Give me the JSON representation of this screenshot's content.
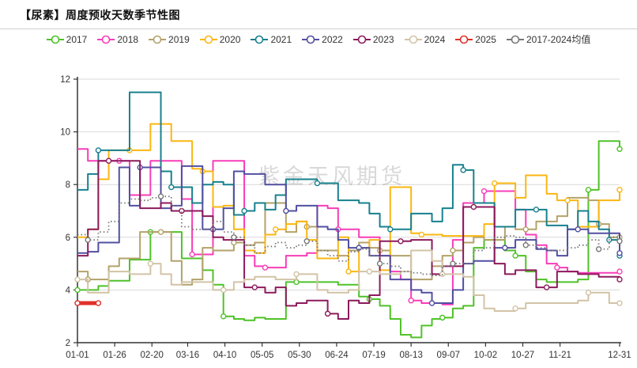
{
  "page": {
    "title": "【尿素】周度预收天数季节性图",
    "watermark": "紫金天风期货"
  },
  "chart_data": {
    "type": "line",
    "line_style": "step-after",
    "title": "【尿素】周度预收天数季节性图",
    "xlabel": "",
    "ylabel": "",
    "x_axis": {
      "unit": "date (weekly, MM-DD)",
      "tick_labels": [
        "01-01",
        "01-26",
        "02-20",
        "03-16",
        "04-10",
        "05-05",
        "05-30",
        "06-24",
        "07-19",
        "08-13",
        "09-07",
        "10-02",
        "10-27",
        "11-21",
        "12-31"
      ]
    },
    "y_axis": {
      "min": 2,
      "max": 12,
      "ticks": [
        2,
        4,
        6,
        8,
        10,
        12
      ]
    },
    "grid": "horizontal",
    "legend_position": "top",
    "series": [
      {
        "name": "2017",
        "color": "#4fc228",
        "values": [
          4.0,
          4.0,
          4.15,
          4.35,
          4.35,
          5.15,
          5.15,
          6.2,
          6.2,
          6.2,
          5.2,
          5.2,
          4.75,
          4.2,
          3.0,
          2.9,
          2.85,
          2.95,
          2.9,
          2.9,
          4.3,
          4.3,
          4.3,
          4.3,
          4.3,
          4.2,
          4.2,
          3.75,
          3.65,
          3.4,
          2.9,
          2.3,
          2.2,
          2.65,
          2.9,
          2.95,
          3.3,
          3.4,
          5.6,
          5.9,
          5.9,
          5.5,
          5.3,
          4.7,
          4.4,
          4.3,
          4.3,
          4.3,
          4.4,
          7.8,
          9.65,
          9.65,
          9.35
        ]
      },
      {
        "name": "2018",
        "color": "#f73db8",
        "values": [
          9.35,
          8.9,
          8.9,
          8.9,
          8.9,
          7.6,
          7.6,
          8.9,
          8.9,
          8.9,
          7.45,
          5.35,
          5.35,
          8.9,
          8.9,
          8.9,
          5.3,
          4.9,
          4.85,
          4.85,
          5.3,
          5.3,
          5.4,
          7.2,
          7.1,
          6.3,
          6.3,
          6.0,
          6.0,
          5.3,
          4.7,
          4.4,
          3.6,
          3.5,
          3.5,
          3.45,
          5.9,
          7.3,
          7.3,
          7.75,
          7.75,
          7.75,
          7.05,
          6.1,
          5.7,
          5.0,
          4.85,
          4.7,
          4.65,
          4.65,
          4.65,
          4.65,
          4.7
        ]
      },
      {
        "name": "2019",
        "color": "#b3a269",
        "values": [
          4.7,
          4.4,
          4.4,
          4.9,
          5.2,
          5.2,
          6.2,
          6.2,
          6.2,
          5.1,
          4.2,
          4.4,
          5.6,
          5.5,
          5.5,
          5.8,
          5.7,
          5.8,
          7.3,
          7.3,
          6.2,
          6.6,
          6.4,
          5.5,
          5.5,
          5.3,
          5.5,
          5.8,
          5.6,
          5.5,
          5.3,
          5.3,
          4.4,
          4.4,
          4.9,
          5.3,
          5.5,
          5.8,
          6.0,
          5.9,
          5.9,
          6.4,
          6.3,
          6.3,
          6.6,
          6.6,
          6.8,
          7.5,
          7.5,
          7.4,
          6.5,
          6.0,
          6.0
        ]
      },
      {
        "name": "2020",
        "color": "#fbb612",
        "values": [
          6.0,
          6.3,
          8.2,
          9.3,
          9.3,
          9.3,
          9.3,
          10.3,
          10.3,
          9.65,
          9.65,
          8.6,
          8.5,
          7.15,
          7.2,
          6.3,
          5.5,
          5.4,
          6.1,
          6.3,
          6.5,
          6.6,
          5.9,
          5.2,
          5.2,
          6.0,
          4.7,
          5.6,
          5.9,
          4.75,
          7.9,
          7.9,
          6.15,
          6.1,
          6.1,
          6.05,
          6.05,
          6.05,
          6.05,
          6.5,
          8.05,
          8.05,
          7.5,
          8.35,
          8.35,
          7.65,
          7.4,
          7.4,
          6.4,
          6.4,
          7.4,
          7.4,
          7.8
        ]
      },
      {
        "name": "2021",
        "color": "#17818e",
        "values": [
          7.8,
          8.4,
          9.3,
          9.3,
          9.3,
          11.5,
          11.5,
          11.5,
          8.5,
          7.9,
          7.9,
          7.3,
          8.0,
          8.1,
          8.0,
          6.85,
          7.0,
          7.3,
          7.05,
          7.6,
          8.2,
          8.2,
          8.2,
          8.05,
          8.05,
          7.4,
          7.4,
          7.3,
          6.9,
          6.4,
          6.3,
          6.3,
          6.9,
          6.9,
          6.6,
          7.1,
          8.75,
          8.55,
          7.3,
          7.3,
          6.4,
          6.4,
          7.05,
          7.05,
          7.05,
          6.45,
          6.45,
          6.3,
          7.0,
          6.6,
          6.3,
          5.9,
          5.3
        ]
      },
      {
        "name": "2022",
        "color": "#524fa1",
        "values": [
          5.4,
          5.45,
          5.8,
          5.8,
          8.65,
          7.2,
          8.65,
          8.65,
          7.1,
          7.2,
          8.7,
          8.7,
          6.3,
          6.3,
          7.1,
          8.5,
          8.4,
          8.4,
          8.0,
          8.0,
          7.0,
          7.2,
          7.2,
          6.4,
          6.3,
          5.9,
          5.6,
          5.6,
          5.3,
          5.3,
          4.4,
          4.4,
          4.0,
          3.9,
          3.5,
          3.5,
          4.0,
          5.0,
          5.1,
          5.1,
          5.6,
          5.6,
          5.9,
          5.9,
          5.55,
          5.5,
          5.3,
          6.3,
          6.3,
          6.15,
          6.15,
          6.15,
          5.4
        ]
      },
      {
        "name": "2023",
        "color": "#8c1a5c",
        "values": [
          5.3,
          6.3,
          8.9,
          8.9,
          8.9,
          8.9,
          7.1,
          7.1,
          7.3,
          7.0,
          7.0,
          7.0,
          6.8,
          6.0,
          5.9,
          5.9,
          4.1,
          4.1,
          3.9,
          4.1,
          3.4,
          3.5,
          3.6,
          3.6,
          3.1,
          2.9,
          3.6,
          3.5,
          3.8,
          5.85,
          5.85,
          5.85,
          5.9,
          5.9,
          4.6,
          4.9,
          4.9,
          7.15,
          7.15,
          7.15,
          5.0,
          4.6,
          4.75,
          4.75,
          4.1,
          4.1,
          4.7,
          4.7,
          4.6,
          4.6,
          4.5,
          4.5,
          4.4
        ]
      },
      {
        "name": "2024",
        "color": "#d2c3a6",
        "values": [
          4.4,
          3.9,
          3.9,
          4.7,
          4.7,
          4.6,
          4.6,
          5.0,
          4.6,
          4.2,
          4.3,
          4.3,
          4.3,
          4.0,
          4.0,
          4.3,
          4.4,
          4.5,
          4.5,
          4.4,
          4.4,
          4.6,
          4.6,
          4.0,
          3.9,
          3.9,
          4.0,
          4.7,
          4.7,
          4.6,
          4.6,
          4.7,
          5.5,
          5.5,
          5.1,
          4.6,
          4.6,
          4.5,
          3.8,
          3.3,
          3.2,
          3.2,
          3.3,
          3.5,
          3.5,
          3.5,
          3.5,
          3.5,
          3.6,
          3.9,
          3.9,
          3.5,
          3.5
        ]
      },
      {
        "name": "2025",
        "color": "#e0312b",
        "width": 5,
        "values": [
          3.5,
          3.5,
          3.5
        ]
      },
      {
        "name": "2017-2024均值",
        "color": "#777777",
        "dashed": true,
        "width": 1.8,
        "values": [
          6.1,
          5.9,
          6.2,
          6.6,
          7.3,
          7.45,
          7.4,
          7.5,
          7.55,
          7.2,
          6.4,
          6.3,
          6.3,
          6.6,
          6.2,
          6.0,
          5.7,
          5.4,
          5.65,
          5.8,
          5.6,
          5.7,
          5.85,
          5.5,
          5.3,
          5.1,
          5.45,
          5.55,
          5.3,
          5.0,
          4.9,
          4.7,
          4.65,
          4.6,
          4.55,
          4.9,
          5.0,
          5.0,
          5.5,
          5.6,
          6.0,
          6.05,
          6.0,
          5.7,
          5.6,
          5.5,
          5.5,
          5.6,
          5.7,
          5.9,
          5.55,
          6.0,
          5.85
        ]
      }
    ]
  }
}
